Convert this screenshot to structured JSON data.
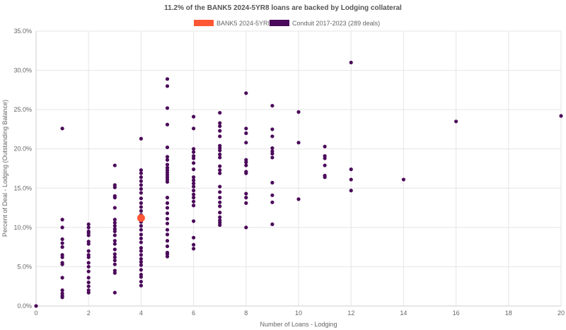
{
  "chart_data": {
    "type": "scatter",
    "title": "11.2% of the BANK5 2024-5YR8 loans are backed by Lodging collateral",
    "xlabel": "Number of Loans - Lodging",
    "ylabel": "Percent of Deal - Lodging (Outstanding Balance)",
    "xlim": [
      0,
      20
    ],
    "ylim": [
      0,
      35
    ],
    "x_ticks": [
      "0",
      "2",
      "4",
      "6",
      "8",
      "10",
      "12",
      "14",
      "16",
      "18",
      "20"
    ],
    "y_ticks": [
      "0.0%",
      "5.0%",
      "10.0%",
      "15.0%",
      "20.0%",
      "25.0%",
      "30.0%",
      "35.0%"
    ],
    "grid": true,
    "legend_position": "top",
    "series": [
      {
        "name": "BANK5 2024-5YR8",
        "color": "#ff5733",
        "points": [
          [
            4,
            11.2
          ]
        ]
      },
      {
        "name": "Conduit 2017-2023 (289 deals)",
        "color": "#4b0a5a",
        "points": [
          [
            0,
            0.0
          ],
          [
            1,
            22.6
          ],
          [
            1,
            11.0
          ],
          [
            1,
            10.0
          ],
          [
            1,
            8.5
          ],
          [
            1,
            8.0
          ],
          [
            1,
            7.5
          ],
          [
            1,
            6.5
          ],
          [
            1,
            6.2
          ],
          [
            1,
            5.5
          ],
          [
            1,
            5.3
          ],
          [
            1,
            3.6
          ],
          [
            1,
            2.0
          ],
          [
            1,
            1.6
          ],
          [
            1,
            1.3
          ],
          [
            1,
            1.1
          ],
          [
            2,
            10.4
          ],
          [
            2,
            10.0
          ],
          [
            2,
            9.5
          ],
          [
            2,
            9.3
          ],
          [
            2,
            9.0
          ],
          [
            2,
            8.2
          ],
          [
            2,
            7.9
          ],
          [
            2,
            7.0
          ],
          [
            2,
            6.5
          ],
          [
            2,
            6.2
          ],
          [
            2,
            5.5
          ],
          [
            2,
            5.0
          ],
          [
            2,
            4.4
          ],
          [
            2,
            3.6
          ],
          [
            2,
            3.0
          ],
          [
            2,
            2.5
          ],
          [
            2,
            2.0
          ],
          [
            2,
            1.7
          ],
          [
            3,
            17.9
          ],
          [
            3,
            15.4
          ],
          [
            3,
            15.1
          ],
          [
            3,
            14.0
          ],
          [
            3,
            13.8
          ],
          [
            3,
            12.5
          ],
          [
            3,
            11.0
          ],
          [
            3,
            10.6
          ],
          [
            3,
            10.2
          ],
          [
            3,
            9.8
          ],
          [
            3,
            9.5
          ],
          [
            3,
            9.0
          ],
          [
            3,
            8.3
          ],
          [
            3,
            7.9
          ],
          [
            3,
            7.2
          ],
          [
            3,
            6.6
          ],
          [
            3,
            6.2
          ],
          [
            3,
            5.8
          ],
          [
            3,
            5.3
          ],
          [
            3,
            4.5
          ],
          [
            3,
            4.2
          ],
          [
            3,
            1.7
          ],
          [
            4,
            21.3
          ],
          [
            4,
            17.3
          ],
          [
            4,
            16.9
          ],
          [
            4,
            16.4
          ],
          [
            4,
            15.9
          ],
          [
            4,
            15.4
          ],
          [
            4,
            14.9
          ],
          [
            4,
            14.4
          ],
          [
            4,
            13.7
          ],
          [
            4,
            13.1
          ],
          [
            4,
            12.6
          ],
          [
            4,
            12.1
          ],
          [
            4,
            11.6
          ],
          [
            4,
            10.7
          ],
          [
            4,
            10.2
          ],
          [
            4,
            9.7
          ],
          [
            4,
            9.1
          ],
          [
            4,
            8.6
          ],
          [
            4,
            8.1
          ],
          [
            4,
            7.4
          ],
          [
            4,
            7.0
          ],
          [
            4,
            6.5
          ],
          [
            4,
            6.0
          ],
          [
            4,
            5.6
          ],
          [
            4,
            5.2
          ],
          [
            4,
            4.6
          ],
          [
            4,
            4.0
          ],
          [
            4,
            3.7
          ],
          [
            4,
            3.1
          ],
          [
            4,
            2.6
          ],
          [
            5,
            28.9
          ],
          [
            5,
            28.0
          ],
          [
            5,
            25.2
          ],
          [
            5,
            23.1
          ],
          [
            5,
            20.2
          ],
          [
            5,
            19.0
          ],
          [
            5,
            18.6
          ],
          [
            5,
            18.0
          ],
          [
            5,
            17.6
          ],
          [
            5,
            17.3
          ],
          [
            5,
            17.0
          ],
          [
            5,
            16.7
          ],
          [
            5,
            16.4
          ],
          [
            5,
            16.1
          ],
          [
            5,
            15.8
          ],
          [
            5,
            13.8
          ],
          [
            5,
            13.1
          ],
          [
            5,
            12.5
          ],
          [
            5,
            11.8
          ],
          [
            5,
            11.1
          ],
          [
            5,
            10.5
          ],
          [
            5,
            9.7
          ],
          [
            5,
            9.1
          ],
          [
            5,
            8.3
          ],
          [
            5,
            7.6
          ],
          [
            5,
            6.8
          ],
          [
            5,
            6.6
          ],
          [
            5,
            6.3
          ],
          [
            6,
            24.1
          ],
          [
            6,
            22.6
          ],
          [
            6,
            20.0
          ],
          [
            6,
            19.6
          ],
          [
            6,
            19.1
          ],
          [
            6,
            18.8
          ],
          [
            6,
            18.2
          ],
          [
            6,
            17.4
          ],
          [
            6,
            16.4
          ],
          [
            6,
            16.0
          ],
          [
            6,
            15.6
          ],
          [
            6,
            15.2
          ],
          [
            6,
            14.7
          ],
          [
            6,
            14.2
          ],
          [
            6,
            13.8
          ],
          [
            6,
            13.3
          ],
          [
            6,
            12.8
          ],
          [
            6,
            10.8
          ],
          [
            6,
            8.7
          ],
          [
            6,
            7.8
          ],
          [
            6,
            7.3
          ],
          [
            7,
            24.6
          ],
          [
            7,
            23.3
          ],
          [
            7,
            22.9
          ],
          [
            7,
            22.3
          ],
          [
            7,
            21.6
          ],
          [
            7,
            20.4
          ],
          [
            7,
            20.1
          ],
          [
            7,
            19.8
          ],
          [
            7,
            19.3
          ],
          [
            7,
            18.9
          ],
          [
            7,
            17.8
          ],
          [
            7,
            17.3
          ],
          [
            7,
            16.9
          ],
          [
            7,
            15.2
          ],
          [
            7,
            14.5
          ],
          [
            7,
            13.8
          ],
          [
            7,
            13.2
          ],
          [
            7,
            12.7
          ],
          [
            7,
            11.9
          ],
          [
            7,
            11.3
          ],
          [
            7,
            10.9
          ],
          [
            7,
            10.6
          ],
          [
            7,
            10.3
          ],
          [
            8,
            27.1
          ],
          [
            8,
            22.6
          ],
          [
            8,
            22.0
          ],
          [
            8,
            20.8
          ],
          [
            8,
            18.6
          ],
          [
            8,
            18.3
          ],
          [
            8,
            17.9
          ],
          [
            8,
            17.1
          ],
          [
            8,
            16.9
          ],
          [
            8,
            14.3
          ],
          [
            8,
            13.8
          ],
          [
            8,
            13.1
          ],
          [
            8,
            10.0
          ],
          [
            9,
            25.5
          ],
          [
            9,
            22.5
          ],
          [
            9,
            21.6
          ],
          [
            9,
            20.1
          ],
          [
            9,
            19.7
          ],
          [
            9,
            19.4
          ],
          [
            9,
            18.9
          ],
          [
            9,
            15.7
          ],
          [
            9,
            14.1
          ],
          [
            9,
            13.2
          ],
          [
            9,
            10.4
          ],
          [
            10,
            24.7
          ],
          [
            10,
            20.8
          ],
          [
            10,
            13.6
          ],
          [
            11,
            20.3
          ],
          [
            11,
            19.1
          ],
          [
            11,
            18.8
          ],
          [
            11,
            17.9
          ],
          [
            11,
            16.6
          ],
          [
            11,
            16.4
          ],
          [
            12,
            31.0
          ],
          [
            12,
            17.4
          ],
          [
            12,
            16.1
          ],
          [
            12,
            14.7
          ],
          [
            14,
            16.1
          ],
          [
            16,
            23.5
          ],
          [
            20,
            24.2
          ]
        ]
      }
    ]
  }
}
